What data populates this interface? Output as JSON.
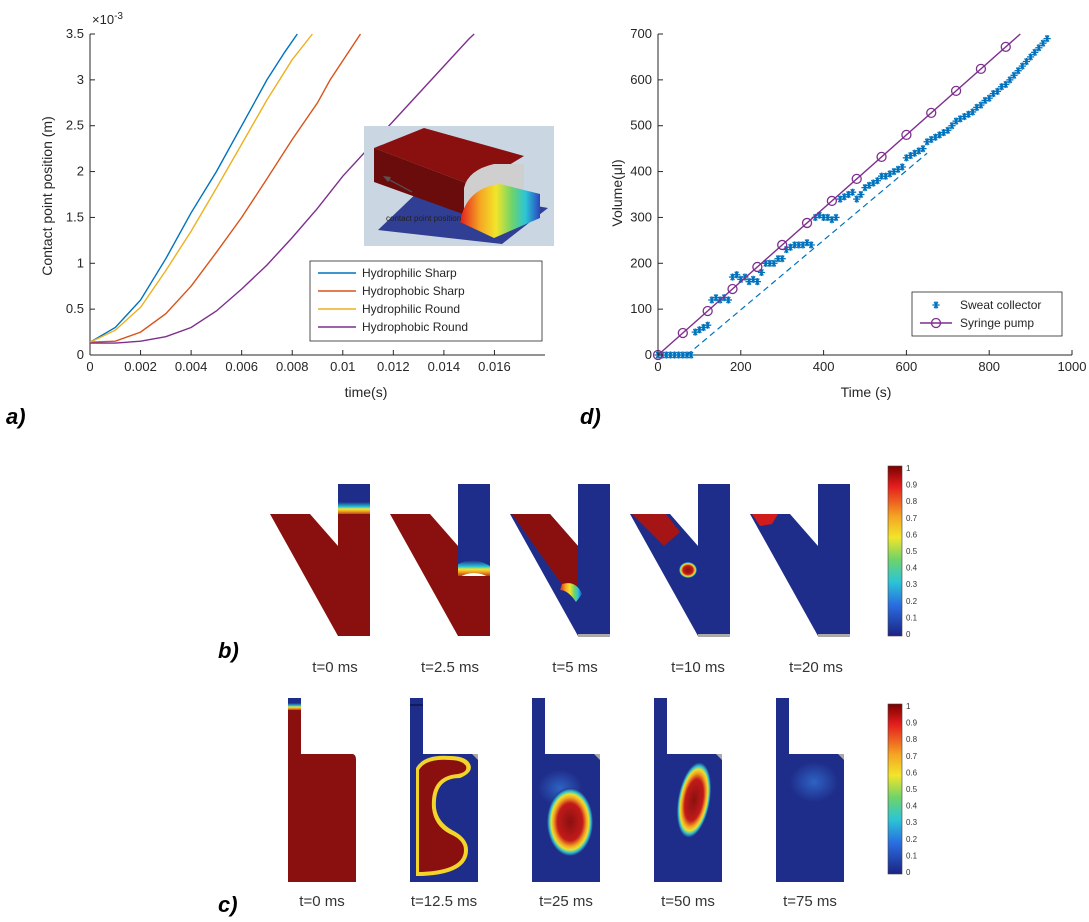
{
  "panel_labels": {
    "a": "a)",
    "b": "b)",
    "c": "c)",
    "d": "d)"
  },
  "chart_data": [
    {
      "type": "line",
      "panel": "a",
      "xlabel": "time(s)",
      "ylabel": "Contact point position (m)",
      "y_exponent_label": "×10",
      "y_exponent_power": "-3",
      "xlim": [
        0,
        0.018
      ],
      "ylim": [
        0,
        3.5
      ],
      "x_ticks": [
        "0",
        "0.002",
        "0.004",
        "0.006",
        "0.008",
        "0.01",
        "0.012",
        "0.014",
        "0.016"
      ],
      "y_ticks": [
        "0",
        "0.5",
        "1",
        "1.5",
        "2",
        "2.5",
        "3",
        "3.5"
      ],
      "legend_position": "bottom-right",
      "inset_label": "contact point position",
      "series": [
        {
          "name": "Hydrophilic Sharp",
          "color": "#0072BD",
          "x": [
            0,
            0.001,
            0.002,
            0.003,
            0.004,
            0.005,
            0.006,
            0.007,
            0.0077,
            0.0082
          ],
          "y": [
            0.14,
            0.3,
            0.6,
            1.05,
            1.55,
            2.0,
            2.5,
            3.0,
            3.3,
            3.5
          ]
        },
        {
          "name": "Hydrophobic Sharp",
          "color": "#D95319",
          "x": [
            0,
            0.001,
            0.002,
            0.003,
            0.004,
            0.005,
            0.006,
            0.007,
            0.008,
            0.009,
            0.0095,
            0.0107
          ],
          "y": [
            0.14,
            0.15,
            0.25,
            0.45,
            0.75,
            1.12,
            1.5,
            1.92,
            2.35,
            2.75,
            3.0,
            3.5
          ]
        },
        {
          "name": "Hydrophilic Round",
          "color": "#EDB120",
          "x": [
            0,
            0.001,
            0.002,
            0.003,
            0.004,
            0.005,
            0.006,
            0.007,
            0.008,
            0.0088
          ],
          "y": [
            0.14,
            0.27,
            0.52,
            0.92,
            1.35,
            1.82,
            2.3,
            2.78,
            3.22,
            3.5
          ]
        },
        {
          "name": "Hydrophobic Round",
          "color": "#7E2F8E",
          "x": [
            0,
            0.001,
            0.002,
            0.003,
            0.004,
            0.005,
            0.006,
            0.007,
            0.008,
            0.009,
            0.01,
            0.011,
            0.012,
            0.013,
            0.014,
            0.015,
            0.0152
          ],
          "y": [
            0.13,
            0.13,
            0.15,
            0.2,
            0.3,
            0.48,
            0.72,
            0.98,
            1.28,
            1.6,
            1.95,
            2.25,
            2.55,
            2.85,
            3.15,
            3.45,
            3.5
          ]
        }
      ]
    },
    {
      "type": "scatter",
      "panel": "d",
      "xlabel": "Time (s)",
      "ylabel": "Volume(μl)",
      "xlim": [
        0,
        1000
      ],
      "ylim": [
        0,
        700
      ],
      "x_ticks": [
        "0",
        "200",
        "400",
        "600",
        "800",
        "1000"
      ],
      "y_ticks": [
        "0",
        "100",
        "200",
        "300",
        "400",
        "500",
        "600",
        "700"
      ],
      "legend_position": "bottom-right",
      "series": [
        {
          "name": "Sweat collector",
          "color": "#0072BD",
          "marker": "star",
          "x": [
            0,
            10,
            20,
            30,
            40,
            50,
            60,
            70,
            80,
            90,
            100,
            110,
            120,
            130,
            140,
            150,
            160,
            170,
            180,
            190,
            200,
            210,
            220,
            230,
            240,
            250,
            260,
            270,
            280,
            290,
            300,
            310,
            320,
            330,
            340,
            350,
            360,
            370,
            380,
            390,
            400,
            410,
            420,
            430,
            440,
            450,
            460,
            470,
            480,
            490,
            500,
            510,
            520,
            530,
            540,
            550,
            560,
            570,
            580,
            590,
            600,
            610,
            620,
            630,
            640,
            650,
            660,
            670,
            680,
            690,
            700,
            710,
            720,
            730,
            740,
            750,
            760,
            770,
            780,
            790,
            800,
            810,
            820,
            830,
            840,
            850,
            860,
            870,
            880,
            890,
            900,
            910,
            920,
            930,
            940
          ],
          "y": [
            0,
            0,
            0,
            0,
            0,
            0,
            0,
            0,
            0,
            50,
            55,
            60,
            65,
            120,
            125,
            120,
            125,
            120,
            170,
            175,
            165,
            170,
            160,
            165,
            160,
            180,
            200,
            200,
            200,
            210,
            210,
            230,
            235,
            240,
            240,
            240,
            245,
            240,
            300,
            305,
            300,
            300,
            295,
            300,
            340,
            345,
            350,
            355,
            340,
            350,
            365,
            370,
            375,
            380,
            390,
            390,
            395,
            400,
            405,
            410,
            430,
            435,
            440,
            445,
            450,
            465,
            470,
            475,
            480,
            485,
            490,
            500,
            510,
            515,
            520,
            525,
            530,
            540,
            545,
            555,
            560,
            570,
            575,
            585,
            590,
            600,
            610,
            620,
            630,
            640,
            650,
            660,
            670,
            680,
            690
          ]
        },
        {
          "name": "Syringe pump",
          "color": "#7E2F8E",
          "marker": "circle",
          "x": [
            0,
            60,
            120,
            180,
            240,
            300,
            360,
            420,
            480,
            540,
            600,
            660,
            720,
            780,
            840
          ],
          "y": [
            0,
            48,
            96,
            144,
            192,
            240,
            288,
            336,
            384,
            432,
            480,
            528,
            576,
            624,
            672
          ]
        }
      ]
    },
    {
      "type": "heatmap",
      "panel": "b",
      "colorbar_ticks": [
        "1",
        "0.9",
        "0.8",
        "0.7",
        "0.6",
        "0.5",
        "0.4",
        "0.3",
        "0.2",
        "0.1",
        "0"
      ],
      "time_labels": [
        "t=0 ms",
        "t=2.5 ms",
        "t=5 ms",
        "t=10 ms",
        "t=20 ms"
      ]
    },
    {
      "type": "heatmap",
      "panel": "c",
      "colorbar_ticks": [
        "1",
        "0.9",
        "0.8",
        "0.7",
        "0.6",
        "0.5",
        "0.4",
        "0.3",
        "0.2",
        "0.1",
        "0"
      ],
      "time_labels": [
        "t=0 ms",
        "t=12.5 ms",
        "t=25 ms",
        "t=50 ms",
        "t=75 ms"
      ]
    }
  ],
  "colors": {
    "fluid": "#8a1010",
    "empty": "#1f2d8a",
    "frame": "#262626"
  }
}
